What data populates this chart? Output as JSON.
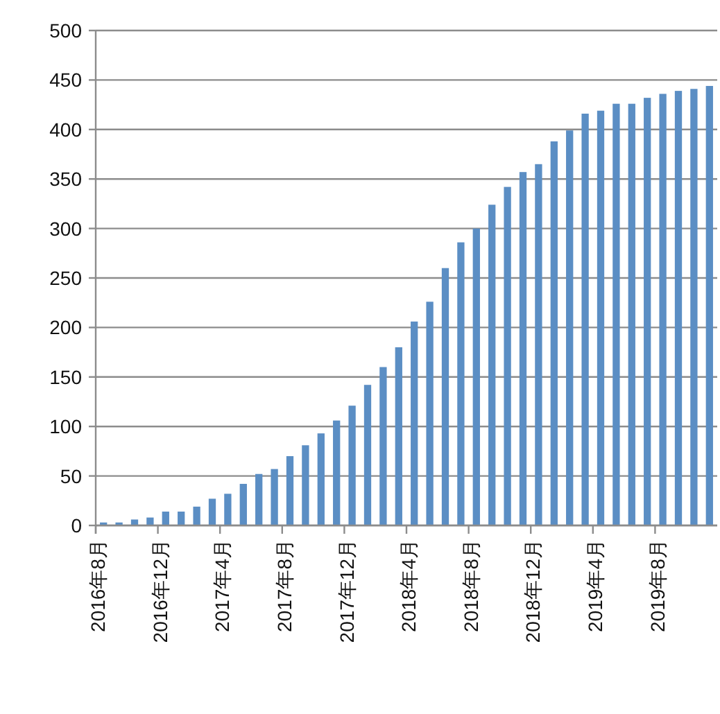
{
  "chart_data": {
    "type": "bar",
    "categories": [
      "2016年8月",
      null,
      null,
      null,
      "2016年12月",
      null,
      null,
      null,
      "2017年4月",
      null,
      null,
      null,
      "2017年8月",
      null,
      null,
      null,
      "2017年12月",
      null,
      null,
      null,
      "2018年4月",
      null,
      null,
      null,
      "2018年8月",
      null,
      null,
      null,
      "2018年12月",
      null,
      null,
      null,
      "2019年4月",
      null,
      null,
      null,
      "2019年8月",
      null,
      null,
      null
    ],
    "values": [
      3,
      3,
      6,
      8,
      14,
      14,
      19,
      27,
      32,
      42,
      52,
      57,
      70,
      81,
      93,
      106,
      121,
      142,
      160,
      180,
      206,
      226,
      260,
      286,
      300,
      324,
      342,
      357,
      365,
      388,
      399,
      416,
      419,
      426,
      426,
      432,
      436,
      439,
      441,
      444
    ],
    "color": "#5b8ec4",
    "ylim": [
      0,
      500
    ],
    "yticks": [
      0,
      50,
      100,
      150,
      200,
      250,
      300,
      350,
      400,
      450,
      500
    ],
    "grid": "y"
  }
}
